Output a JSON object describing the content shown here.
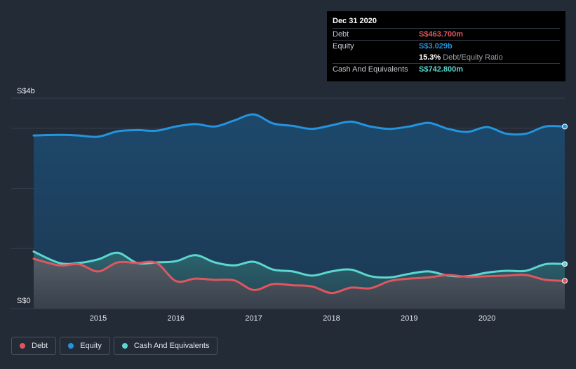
{
  "tooltip": {
    "date": "Dec 31 2020",
    "rows": {
      "debt": {
        "label": "Debt",
        "value": "S$463.700m"
      },
      "equity": {
        "label": "Equity",
        "value": "S$3.029b"
      },
      "ratio": {
        "value": "15.3%",
        "label": "Debt/Equity Ratio"
      },
      "cash": {
        "label": "Cash And Equivalents",
        "value": "S$742.800m"
      }
    }
  },
  "legend": {
    "debt": "Debt",
    "equity": "Equity",
    "cash": "Cash And Equivalents"
  },
  "colors": {
    "debt": "#e0565f",
    "equity": "#2394df",
    "cash": "#5ad8cf",
    "background": "#232b37"
  },
  "chart_data": {
    "type": "area",
    "y_tick_labels": {
      "top": "S$4b",
      "bottom": "S$0"
    },
    "ylim": [
      0,
      3.5
    ],
    "y_gridlines": [
      0,
      1,
      2,
      3,
      3.5
    ],
    "xlim": [
      2014.17,
      2021.0
    ],
    "x_ticks": [
      {
        "label": "2015",
        "value": 2015
      },
      {
        "label": "2016",
        "value": 2016
      },
      {
        "label": "2017",
        "value": 2017
      },
      {
        "label": "2018",
        "value": 2018
      },
      {
        "label": "2019",
        "value": 2019
      },
      {
        "label": "2020",
        "value": 2020
      }
    ],
    "series": [
      {
        "key": "equity",
        "name": "Equity",
        "unit": "S$b",
        "x": [
          2014.17,
          2014.5,
          2014.75,
          2015.0,
          2015.25,
          2015.5,
          2015.75,
          2016.0,
          2016.25,
          2016.5,
          2016.75,
          2017.0,
          2017.25,
          2017.5,
          2017.75,
          2018.0,
          2018.25,
          2018.5,
          2018.75,
          2019.0,
          2019.25,
          2019.5,
          2019.75,
          2020.0,
          2020.25,
          2020.5,
          2020.75,
          2021.0
        ],
        "values": [
          2.88,
          2.89,
          2.88,
          2.86,
          2.95,
          2.97,
          2.96,
          3.03,
          3.07,
          3.03,
          3.13,
          3.23,
          3.08,
          3.04,
          2.99,
          3.05,
          3.11,
          3.03,
          2.99,
          3.03,
          3.09,
          2.99,
          2.94,
          3.02,
          2.91,
          2.91,
          3.03,
          3.029
        ]
      },
      {
        "key": "cash",
        "name": "Cash And Equivalents",
        "unit": "S$b",
        "x": [
          2014.17,
          2014.5,
          2014.75,
          2015.0,
          2015.25,
          2015.5,
          2015.75,
          2016.0,
          2016.25,
          2016.5,
          2016.75,
          2017.0,
          2017.25,
          2017.5,
          2017.75,
          2018.0,
          2018.25,
          2018.5,
          2018.75,
          2019.0,
          2019.25,
          2019.5,
          2019.75,
          2020.0,
          2020.25,
          2020.5,
          2020.75,
          2021.0
        ],
        "values": [
          0.95,
          0.76,
          0.76,
          0.82,
          0.93,
          0.76,
          0.77,
          0.79,
          0.89,
          0.77,
          0.72,
          0.78,
          0.65,
          0.62,
          0.55,
          0.62,
          0.65,
          0.54,
          0.52,
          0.58,
          0.62,
          0.55,
          0.54,
          0.6,
          0.63,
          0.63,
          0.74,
          0.7428
        ]
      },
      {
        "key": "debt",
        "name": "Debt",
        "unit": "S$b",
        "x": [
          2014.17,
          2014.5,
          2014.75,
          2015.0,
          2015.25,
          2015.5,
          2015.75,
          2016.0,
          2016.25,
          2016.5,
          2016.75,
          2017.0,
          2017.25,
          2017.5,
          2017.75,
          2018.0,
          2018.25,
          2018.5,
          2018.75,
          2019.0,
          2019.25,
          2019.5,
          2019.75,
          2020.0,
          2020.25,
          2020.5,
          2020.75,
          2021.0
        ],
        "values": [
          0.83,
          0.72,
          0.74,
          0.62,
          0.77,
          0.76,
          0.76,
          0.46,
          0.5,
          0.48,
          0.47,
          0.31,
          0.41,
          0.39,
          0.37,
          0.26,
          0.35,
          0.34,
          0.46,
          0.5,
          0.52,
          0.56,
          0.53,
          0.54,
          0.55,
          0.56,
          0.48,
          0.4637
        ]
      }
    ]
  }
}
